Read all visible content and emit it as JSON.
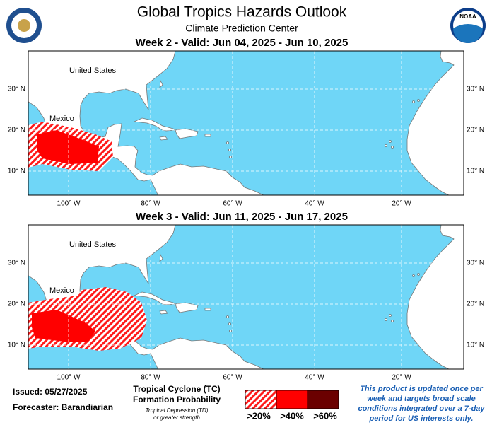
{
  "header": {
    "title": "Global Tropics Hazards Outlook",
    "subtitle": "Climate Prediction Center",
    "logo_text": "NOAA"
  },
  "maps": [
    {
      "title": "Week 2 - Valid: Jun 04, 2025 - Jun 10, 2025",
      "labels": [
        "United States",
        "Mexico"
      ]
    },
    {
      "title": "Week 3 - Valid: Jun 11, 2025 - Jun 17, 2025",
      "labels": [
        "United States",
        "Mexico"
      ]
    }
  ],
  "axes": {
    "lat_labels": [
      "30° N",
      "20° N",
      "10° N"
    ],
    "lon_labels": [
      "100° W",
      "80° W",
      "60° W",
      "40° W",
      "20° W"
    ]
  },
  "footer": {
    "issued": "Issued: 05/27/2025",
    "forecaster": "Forecaster: Barandiarian",
    "legend": {
      "title": [
        "Tropical Cyclone (TC)",
        "Formation Probability"
      ],
      "note": [
        "Tropical Depression (TD)",
        "or greater strength"
      ],
      "items": [
        ">20%",
        ">40%",
        ">60%"
      ]
    },
    "disclaimer": [
      "This product is updated once per",
      "week and targets broad scale",
      "conditions integrated over a 7-day",
      "period for US interests only."
    ]
  }
}
